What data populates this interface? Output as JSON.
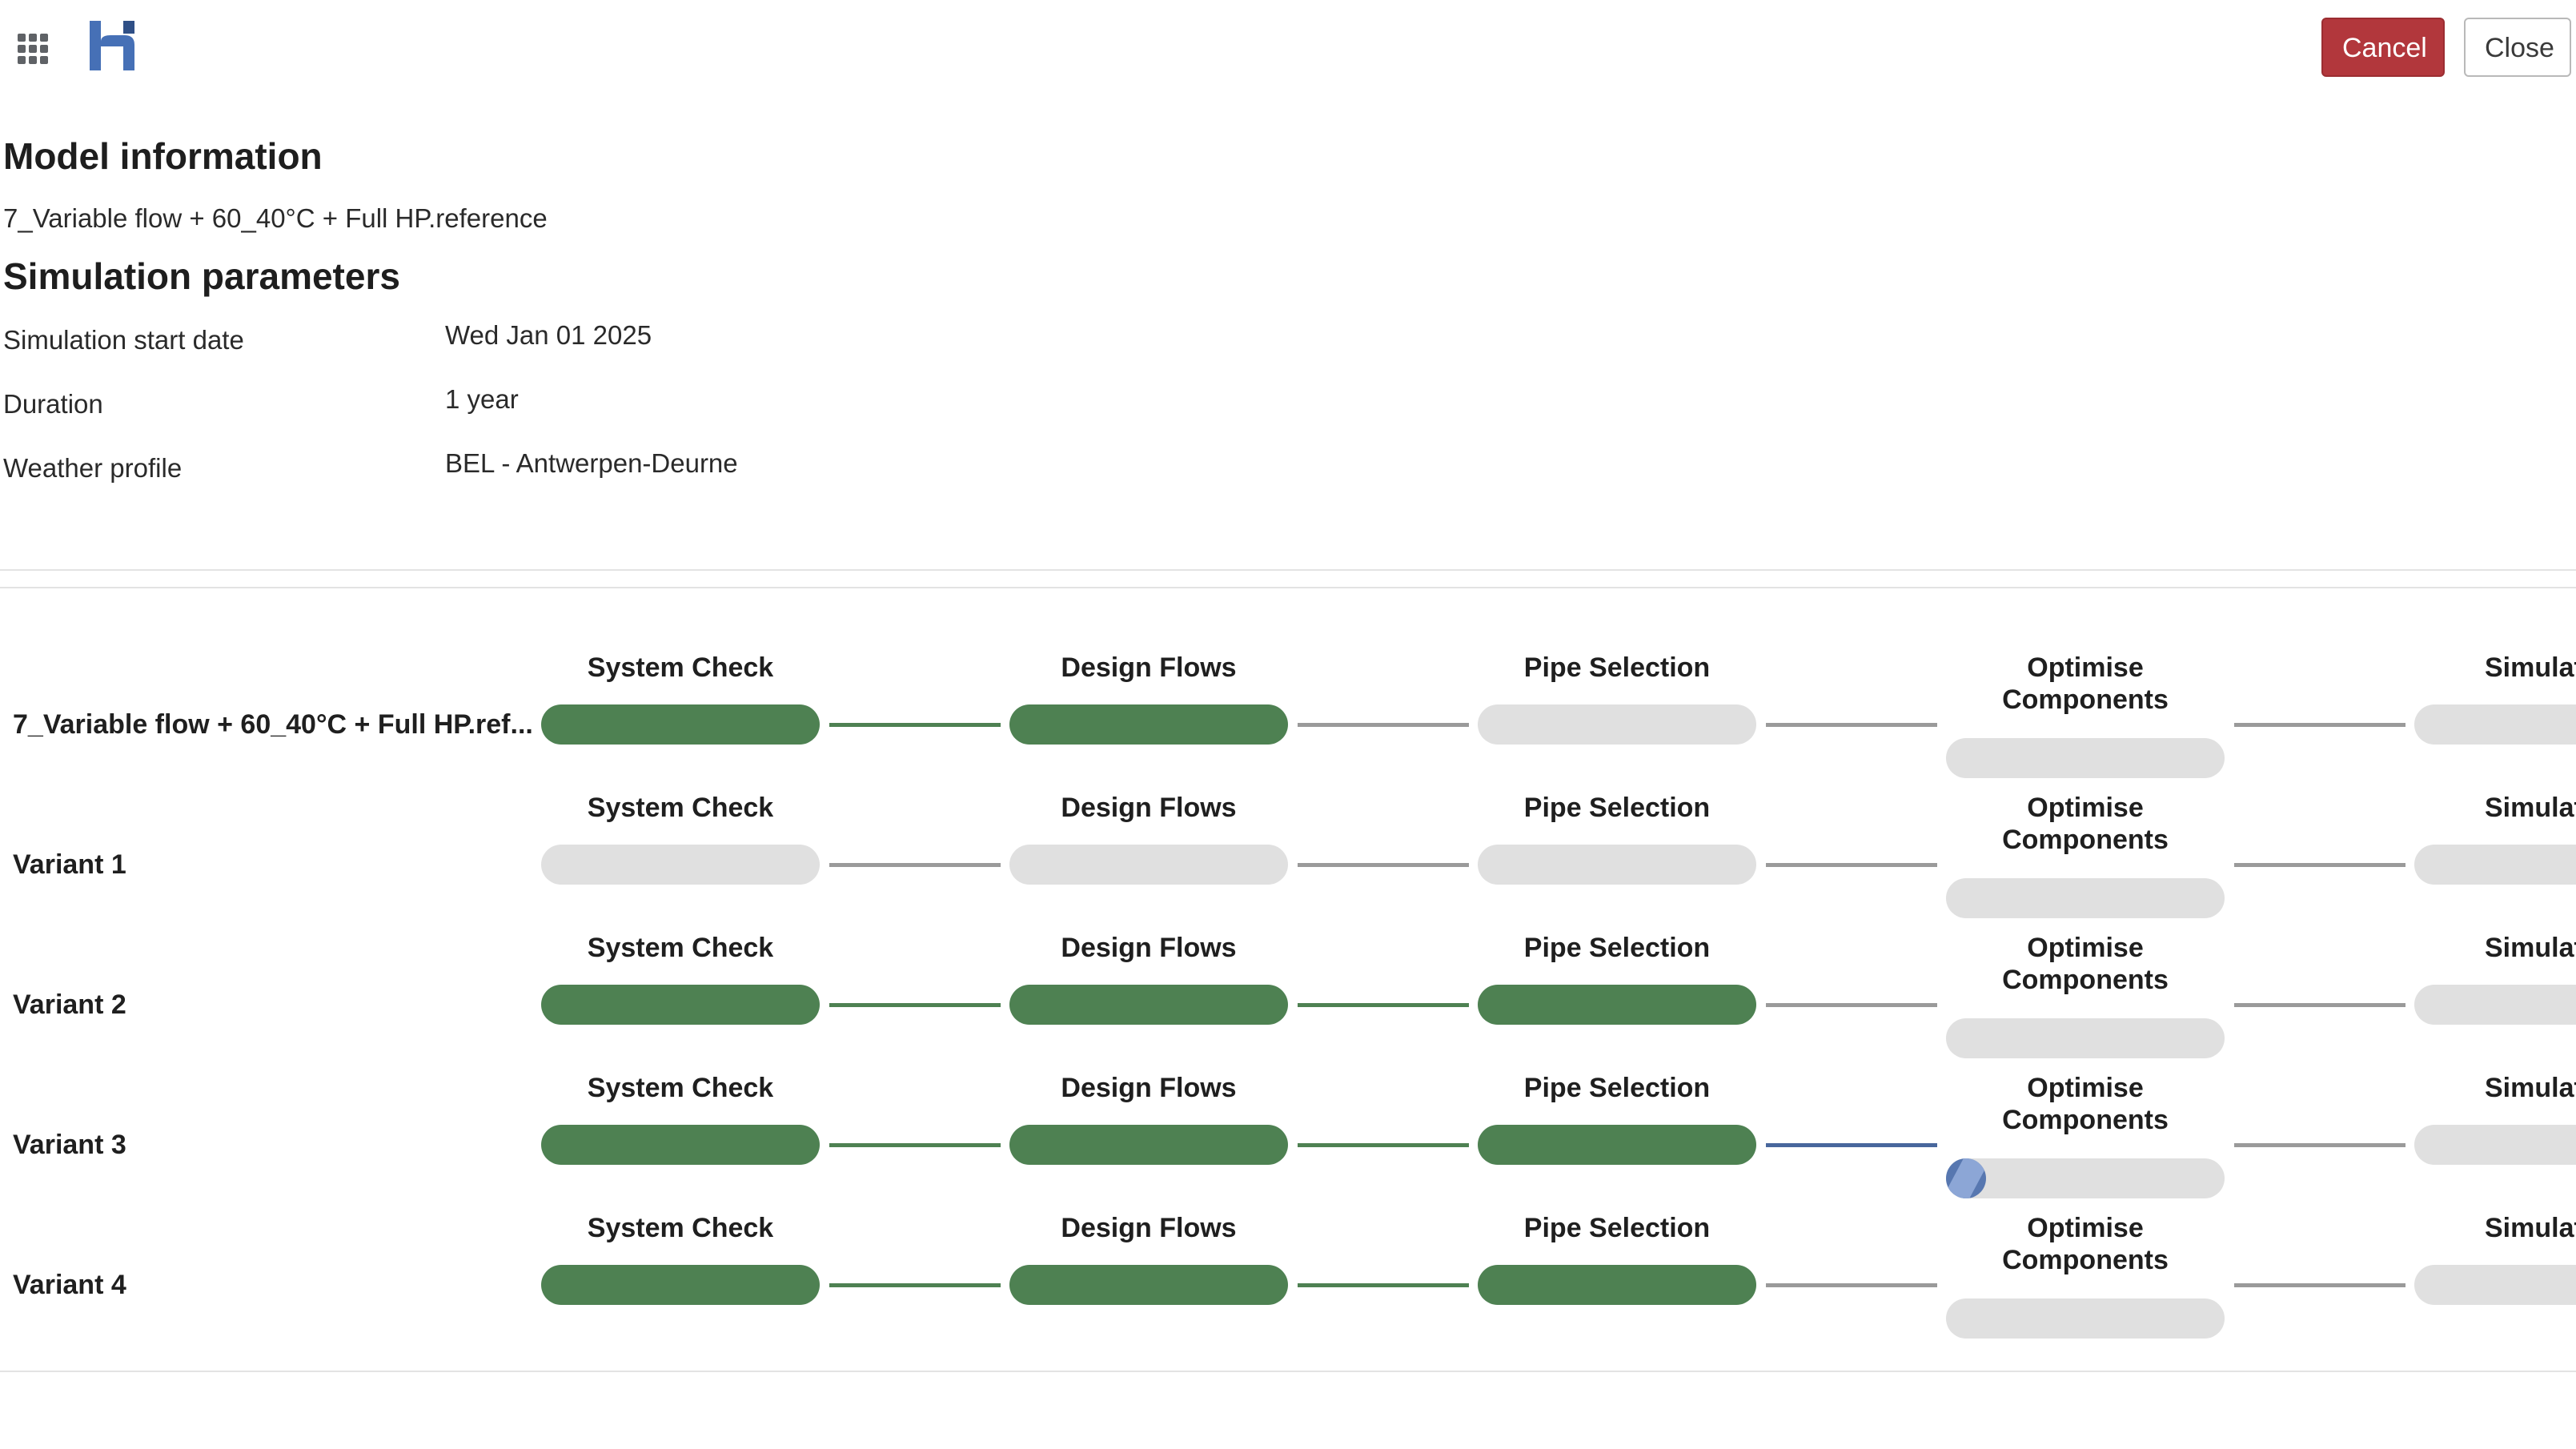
{
  "header": {
    "apps_icon": "apps-grid-icon",
    "logo_icon": "logo-icon",
    "cancel_label": "Cancel",
    "close_label": "Close",
    "colors": {
      "cancel_bg": "#b2373c",
      "logo_blue": "#4670b6",
      "logo_dark": "#2f4f86"
    }
  },
  "model_info": {
    "heading": "Model information",
    "reference": "7_Variable flow + 60_40°C + Full HP.reference"
  },
  "simulation": {
    "heading": "Simulation parameters",
    "params": [
      {
        "label": "Simulation start date",
        "value": "Wed Jan 01 2025"
      },
      {
        "label": "Duration",
        "value": "1 year"
      },
      {
        "label": "Weather profile",
        "value": "BEL - Antwerpen-Deurne"
      }
    ]
  },
  "pipeline": {
    "colors": {
      "done": "#4e8152",
      "pending": "#e0e0e0",
      "running": "#5777b0",
      "connector": "#9a9a9a"
    },
    "steps": [
      "System Check",
      "Design Flows",
      "Pipe Selection",
      "Optimise Components",
      "Simulat"
    ],
    "optimise_lines": [
      "Optimise",
      "Components"
    ],
    "rows": [
      {
        "name": "7_Variable flow + 60_40°C + Full HP.ref...",
        "status": [
          "done",
          "done",
          "pending",
          "pending",
          "pending"
        ]
      },
      {
        "name": "Variant 1",
        "status": [
          "pending",
          "pending",
          "pending",
          "pending",
          "pending"
        ]
      },
      {
        "name": "Variant 2",
        "status": [
          "done",
          "done",
          "done",
          "pending",
          "pending"
        ]
      },
      {
        "name": "Variant 3",
        "status": [
          "done",
          "done",
          "done",
          "running",
          "pending"
        ]
      },
      {
        "name": "Variant 4",
        "status": [
          "done",
          "done",
          "done",
          "pending",
          "pending"
        ]
      }
    ]
  }
}
